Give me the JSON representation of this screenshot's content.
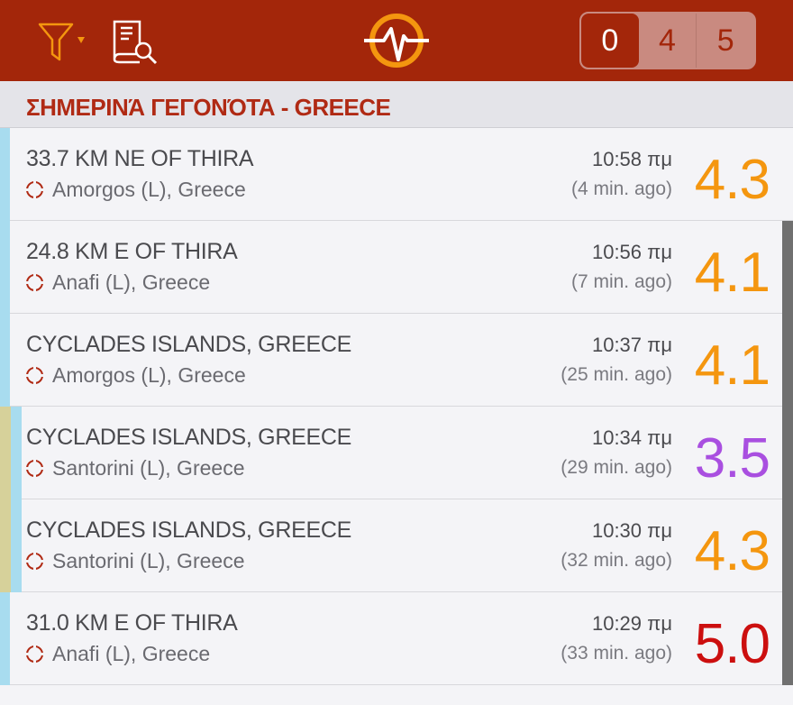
{
  "header": {
    "icons": [
      "filter-icon",
      "catalog-search-icon",
      "app-logo-icon"
    ],
    "segments": [
      {
        "label": "0",
        "active": true
      },
      {
        "label": "4",
        "active": false
      },
      {
        "label": "5",
        "active": false
      }
    ]
  },
  "section": {
    "title": "ΣΗΜΕΡΙΝΆ ΓΕΓΟΝΌΤΑ - GREECE"
  },
  "colors": {
    "header": "#a3260a",
    "orange": "#f4960f",
    "purple": "#a94fe0",
    "red": "#cc0f0f",
    "strip_blue": "#a8dcef",
    "strip_olive": "#d6d19a"
  },
  "events": [
    {
      "title": "33.7 KM NE OF THIRA",
      "place": "Amorgos (L), Greece",
      "time": "10:58 πμ",
      "ago": "(4 min. ago)",
      "mag": "4.3",
      "color": "#f4960f",
      "olive": false
    },
    {
      "title": "24.8 KM E OF THIRA",
      "place": "Anafi (L), Greece",
      "time": "10:56 πμ",
      "ago": "(7 min. ago)",
      "mag": "4.1",
      "color": "#f4960f",
      "olive": false
    },
    {
      "title": "CYCLADES ISLANDS, GREECE",
      "place": "Amorgos (L), Greece",
      "time": "10:37 πμ",
      "ago": "(25 min. ago)",
      "mag": "4.1",
      "color": "#f4960f",
      "olive": false
    },
    {
      "title": "CYCLADES ISLANDS, GREECE",
      "place": "Santorini (L), Greece",
      "time": "10:34 πμ",
      "ago": "(29 min. ago)",
      "mag": "3.5",
      "color": "#a94fe0",
      "olive": true
    },
    {
      "title": "CYCLADES ISLANDS, GREECE",
      "place": "Santorini (L), Greece",
      "time": "10:30 πμ",
      "ago": "(32 min. ago)",
      "mag": "4.3",
      "color": "#f4960f",
      "olive": true
    },
    {
      "title": "31.0 KM E OF THIRA",
      "place": "Anafi (L), Greece",
      "time": "10:29 πμ",
      "ago": "(33 min. ago)",
      "mag": "5.0",
      "color": "#cc0f0f",
      "olive": false
    }
  ]
}
